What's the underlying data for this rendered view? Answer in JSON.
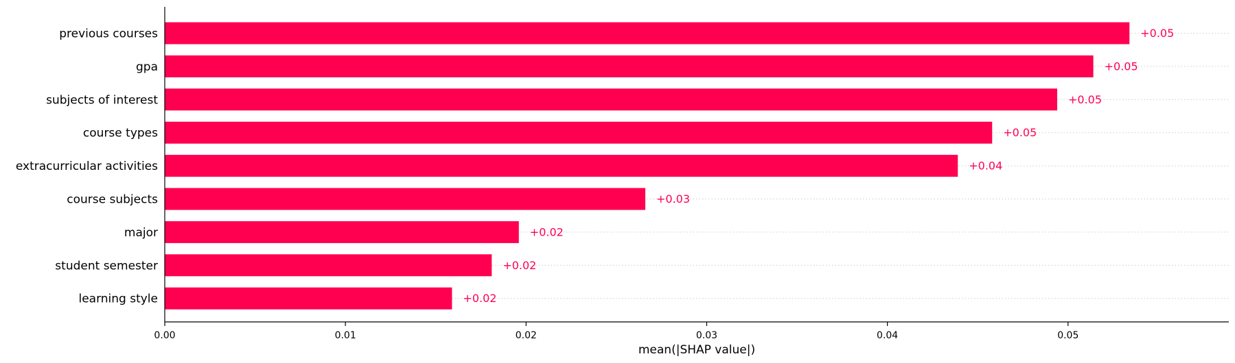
{
  "chart_data": {
    "type": "bar",
    "orientation": "horizontal",
    "categories": [
      "previous courses",
      "gpa",
      "subjects of interest",
      "course types",
      "extracurricular activities",
      "course subjects",
      "major",
      "student semester",
      "learning style"
    ],
    "values": [
      0.0534,
      0.0514,
      0.0494,
      0.0458,
      0.0439,
      0.0266,
      0.0196,
      0.0181,
      0.0159
    ],
    "value_labels": [
      "+0.05",
      "+0.05",
      "+0.05",
      "+0.05",
      "+0.04",
      "+0.03",
      "+0.02",
      "+0.02",
      "+0.02"
    ],
    "xlabel": "mean(|SHAP value|)",
    "ylabel": "",
    "title": "",
    "xlim": [
      0,
      0.0589
    ],
    "xticks": [
      "0.00",
      "0.01",
      "0.02",
      "0.03",
      "0.04",
      "0.05"
    ],
    "xtick_values": [
      0,
      0.01,
      0.02,
      0.03,
      0.04,
      0.05
    ],
    "bar_color": "#ff0051",
    "label_color": "#ff0051",
    "row_guides": "dotted"
  }
}
